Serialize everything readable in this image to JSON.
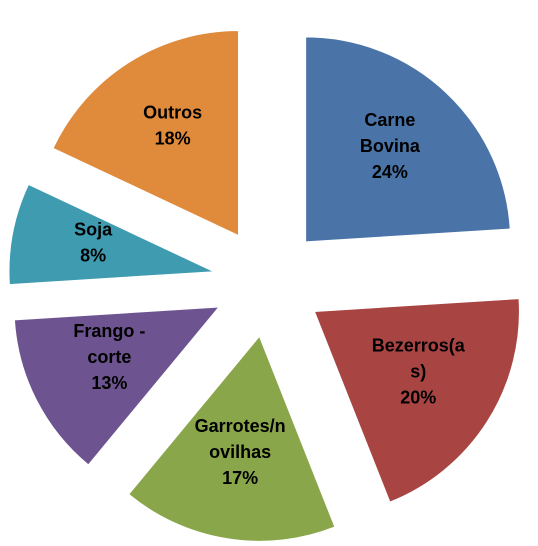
{
  "chart_data": {
    "type": "pie",
    "categories": [
      "Carne Bovina",
      "Bezerros(as)",
      "Garrotes/novilhas",
      "Frango - corte",
      "Soja",
      "Outros"
    ],
    "values": [
      24,
      20,
      17,
      13,
      8,
      18
    ],
    "value_labels": [
      "24%",
      "20%",
      "17%",
      "13%",
      "8%",
      "18%"
    ],
    "colors": [
      "#4a74a8",
      "#a84442",
      "#8aa64a",
      "#6d5490",
      "#3f9bb0",
      "#e08a3c"
    ]
  }
}
